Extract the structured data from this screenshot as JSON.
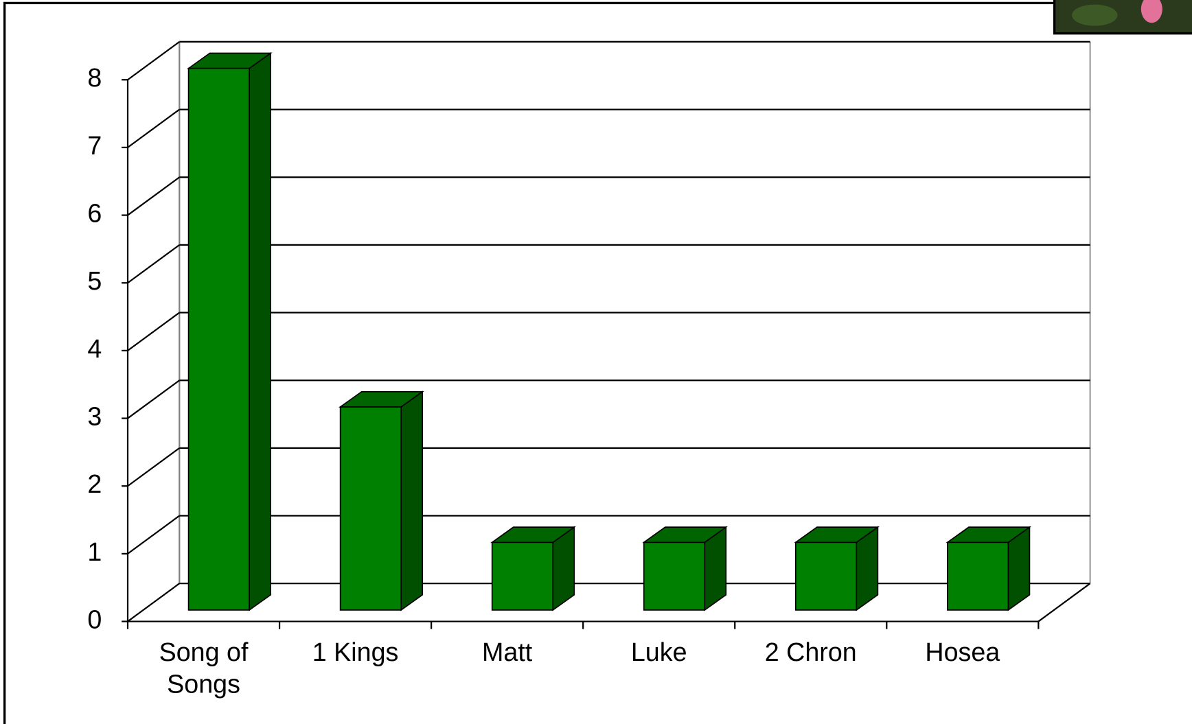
{
  "chart_data": {
    "type": "bar3d",
    "categories": [
      "Song of Songs",
      "1 Kings",
      "Matt",
      "Luke",
      "2 Chron",
      "Hosea"
    ],
    "values": [
      8,
      3,
      1,
      1,
      1,
      1
    ],
    "color": "#008000",
    "ylim": [
      0,
      8
    ],
    "yticks": [
      0,
      1,
      2,
      3,
      4,
      5,
      6,
      7,
      8
    ],
    "grid": true
  }
}
